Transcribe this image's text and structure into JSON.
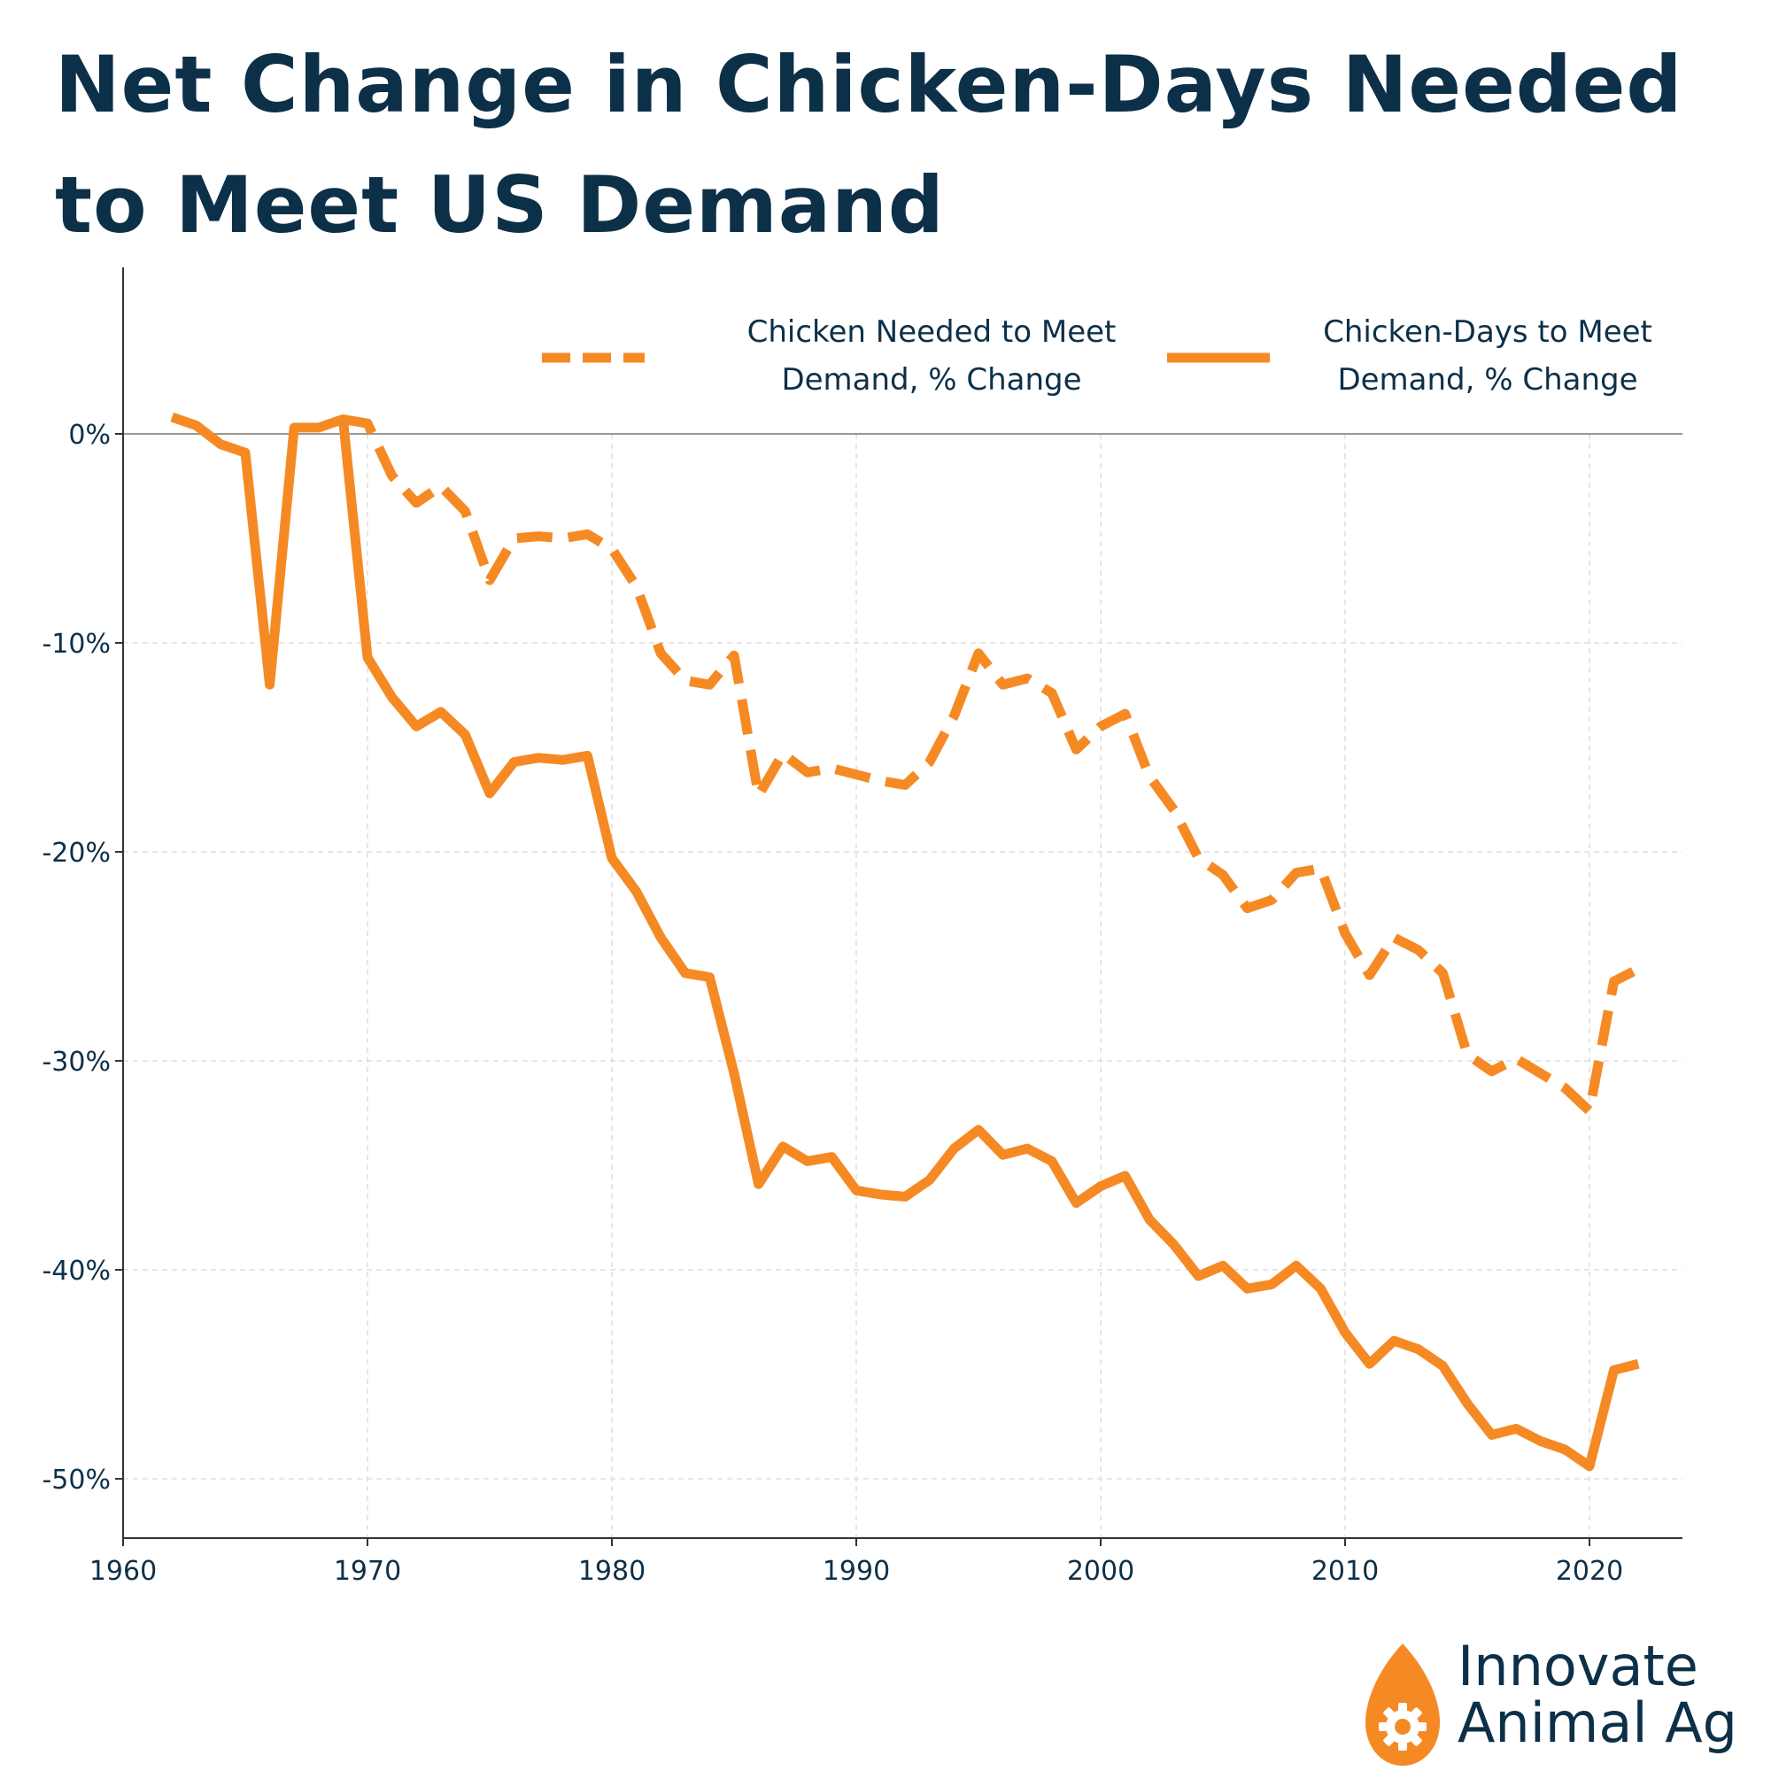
{
  "chart_data": {
    "type": "line",
    "title": "Net Change in Chicken-Days Needed to Meet US Demand",
    "xlabel": "",
    "ylabel": "",
    "xlim": [
      1960,
      2024
    ],
    "ylim": [
      -53,
      8
    ],
    "x_ticks": [
      1960,
      1970,
      1980,
      1990,
      2000,
      2010,
      2020
    ],
    "y_ticks": [
      0,
      -10,
      -20,
      -30,
      -40,
      -50
    ],
    "y_tick_labels": [
      "0%",
      "-10%",
      "-20%",
      "-30%",
      "-40%",
      "-50%"
    ],
    "grid": true,
    "legend_position": "top-right",
    "colors": {
      "line": "#f58a25",
      "text": "#0d3049",
      "axis": "#333333",
      "grid": "#dddddd"
    },
    "series": [
      {
        "name": "Chicken Needed to Meet Demand, % Change",
        "style": "dashed",
        "x": [
          1969,
          1970,
          1971,
          1972,
          1973,
          1974,
          1975,
          1976,
          1977,
          1978,
          1979,
          1980,
          1981,
          1982,
          1983,
          1984,
          1985,
          1986,
          1987,
          1988,
          1989,
          1990,
          1991,
          1992,
          1993,
          1994,
          1995,
          1996,
          1997,
          1998,
          1999,
          2000,
          2001,
          2002,
          2003,
          2004,
          2005,
          2006,
          2007,
          2008,
          2009,
          2010,
          2011,
          2012,
          2013,
          2014,
          2015,
          2016,
          2017,
          2018,
          2019,
          2020,
          2021,
          2022
        ],
        "y": [
          0.7,
          0.5,
          -2.0,
          -3.3,
          -2.5,
          -3.7,
          -7.0,
          -5.0,
          -4.9,
          -5.0,
          -4.8,
          -5.5,
          -7.3,
          -10.5,
          -11.8,
          -12.0,
          -10.6,
          -17.3,
          -15.3,
          -16.2,
          -16.0,
          -16.3,
          -16.6,
          -16.8,
          -15.7,
          -13.5,
          -10.5,
          -12.0,
          -11.7,
          -12.4,
          -15.1,
          -14.0,
          -13.4,
          -16.4,
          -18.0,
          -20.3,
          -21.1,
          -22.7,
          -22.3,
          -21.0,
          -20.8,
          -23.9,
          -25.9,
          -24.1,
          -24.7,
          -25.8,
          -29.7,
          -30.5,
          -29.9,
          -30.6,
          -31.3,
          -32.4,
          -26.2,
          -25.6
        ]
      },
      {
        "name": "Chicken-Days to Meet Demand, % Change",
        "style": "solid",
        "x": [
          1962,
          1963,
          1964,
          1965,
          1966,
          1967,
          1968,
          1969,
          1970,
          1971,
          1972,
          1973,
          1974,
          1975,
          1976,
          1977,
          1978,
          1979,
          1980,
          1981,
          1982,
          1983,
          1984,
          1985,
          1986,
          1987,
          1988,
          1989,
          1990,
          1991,
          1992,
          1993,
          1994,
          1995,
          1996,
          1997,
          1998,
          1999,
          2000,
          2001,
          2002,
          2003,
          2004,
          2005,
          2006,
          2007,
          2008,
          2009,
          2010,
          2011,
          2012,
          2013,
          2014,
          2015,
          2016,
          2017,
          2018,
          2019,
          2020,
          2021,
          2022
        ],
        "y": [
          0.8,
          0.4,
          -0.5,
          -0.9,
          -12.0,
          0.3,
          0.3,
          0.7,
          -10.7,
          -12.6,
          -14.0,
          -13.3,
          -14.4,
          -17.2,
          -15.7,
          -15.5,
          -15.6,
          -15.4,
          -20.3,
          -21.9,
          -24.1,
          -25.8,
          -26.0,
          -30.6,
          -35.9,
          -34.1,
          -34.8,
          -34.6,
          -36.2,
          -36.4,
          -36.5,
          -35.7,
          -34.2,
          -33.3,
          -34.5,
          -34.2,
          -34.8,
          -36.8,
          -36.0,
          -35.5,
          -37.6,
          -38.8,
          -40.3,
          -39.8,
          -40.9,
          -40.7,
          -39.8,
          -40.9,
          -43.0,
          -44.5,
          -43.4,
          -43.8,
          -44.6,
          -46.4,
          -47.9,
          -47.6,
          -48.2,
          -48.6,
          -49.4,
          -44.8,
          -44.5
        ]
      }
    ]
  },
  "brand": {
    "name": "Innovate Animal Ag",
    "line1": "Innovate",
    "line2": "Animal Ag"
  }
}
